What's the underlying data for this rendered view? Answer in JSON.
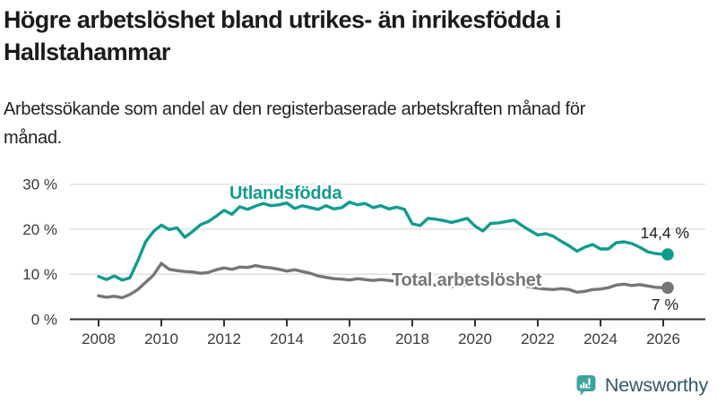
{
  "header": {
    "title": "Högre arbetslöshet bland utrikes- än inrikesfödda i Hallstahammar",
    "subtitle": "Arbetssökande som andel av den registerbaserade arbetskraften månad för månad."
  },
  "chart_data": {
    "type": "line",
    "title": "",
    "xlabel": "",
    "ylabel": "",
    "x_start_year": 2008,
    "x_step_years": 0.25,
    "x_end": "2026",
    "x_ticks": [
      2008,
      2010,
      2012,
      2014,
      2016,
      2018,
      2020,
      2022,
      2024,
      2026
    ],
    "y_ticks": [
      0,
      10,
      20,
      30
    ],
    "y_tick_suffix": " %",
    "ylim": [
      0,
      32
    ],
    "grid": true,
    "legend_position": "inline-labels",
    "series": [
      {
        "name": "Utlandsfödda",
        "color": "#109c8f",
        "end_label": "14,4 %",
        "end_value": 14.4,
        "values": [
          9.5,
          8.8,
          9.6,
          8.7,
          9.2,
          13.0,
          17.2,
          19.5,
          20.9,
          19.9,
          20.3,
          18.2,
          19.5,
          21.0,
          21.7,
          22.9,
          24.2,
          23.3,
          25.0,
          24.4,
          25.1,
          25.7,
          25.2,
          25.4,
          25.8,
          24.6,
          25.2,
          24.8,
          24.4,
          25.2,
          24.5,
          24.8,
          26.0,
          25.4,
          25.7,
          24.8,
          25.2,
          24.5,
          24.9,
          24.4,
          21.2,
          20.8,
          22.4,
          22.2,
          21.9,
          21.5,
          21.9,
          22.4,
          20.7,
          19.6,
          21.3,
          21.4,
          21.7,
          22.0,
          20.8,
          19.7,
          18.7,
          19.0,
          18.4,
          17.3,
          16.3,
          15.1,
          16.0,
          16.6,
          15.6,
          15.6,
          17.0,
          17.2,
          16.8,
          16.0,
          15.0,
          14.6,
          14.4
        ]
      },
      {
        "name": "Total arbetslöshet",
        "color": "#76767a",
        "end_label": "7 %",
        "end_value": 7.0,
        "values": [
          5.2,
          4.9,
          5.1,
          4.8,
          5.5,
          6.6,
          8.2,
          9.8,
          12.4,
          11.1,
          10.8,
          10.6,
          10.5,
          10.2,
          10.4,
          11.0,
          11.4,
          11.1,
          11.6,
          11.5,
          11.9,
          11.6,
          11.4,
          11.1,
          10.7,
          11.0,
          10.6,
          10.2,
          9.6,
          9.3,
          9.0,
          8.9,
          8.7,
          9.0,
          8.8,
          8.6,
          8.8,
          8.6,
          8.4,
          8.3,
          7.9,
          7.7,
          7.8,
          7.6,
          7.5,
          7.3,
          7.4,
          7.6,
          8.0,
          8.8,
          8.6,
          8.2,
          8.0,
          7.8,
          7.4,
          7.2,
          6.9,
          6.7,
          6.6,
          6.8,
          6.6,
          6.0,
          6.2,
          6.6,
          6.7,
          7.0,
          7.6,
          7.8,
          7.5,
          7.7,
          7.4,
          7.1,
          7.0
        ]
      }
    ],
    "colors": {
      "gridline": "#dcdcdc",
      "axis": "#2f2f2f",
      "tick_label": "#3a3a3a",
      "end_label": "#1c1c1c"
    }
  },
  "footer": {
    "brand": "Newsworthy",
    "logo_color": "#3ea39c",
    "text_color": "#33566b"
  }
}
